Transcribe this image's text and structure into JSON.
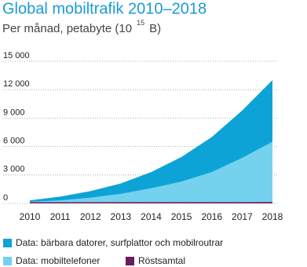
{
  "chart_data": {
    "type": "stacked_area",
    "title": "Global mobiltrafik 2010–2018",
    "subtitle": [
      "Per månad, petabyte (10",
      "15",
      "B)"
    ],
    "categories": [
      "2010",
      "2011",
      "2012",
      "2013",
      "2014",
      "2015",
      "2016",
      "2017",
      "2018"
    ],
    "series": [
      {
        "name": "Data: bärbara datorer, surfplattor och mobilroutrar",
        "color": "#0ea3d6",
        "values": [
          150,
          400,
          700,
          1100,
          1700,
          2600,
          3700,
          5000,
          6500
        ]
      },
      {
        "name": "Data: mobiltelefoner",
        "color": "#74d2ee",
        "values": [
          50,
          180,
          470,
          860,
          1460,
          2150,
          3150,
          4650,
          6350
        ]
      },
      {
        "name": "Röstsamtal",
        "color": "#6b1a5e",
        "values": [
          120,
          130,
          130,
          140,
          140,
          150,
          150,
          150,
          160
        ]
      }
    ],
    "ylim": [
      0,
      15000
    ],
    "yticks": [
      {
        "value": 0,
        "label": "0"
      },
      {
        "value": 3000,
        "label": "3 000"
      },
      {
        "value": 6000,
        "label": "6 000"
      },
      {
        "value": 9000,
        "label": "9 000"
      },
      {
        "value": 12000,
        "label": "12 000"
      },
      {
        "value": 15000,
        "label": "15 000"
      }
    ],
    "grid": true
  }
}
